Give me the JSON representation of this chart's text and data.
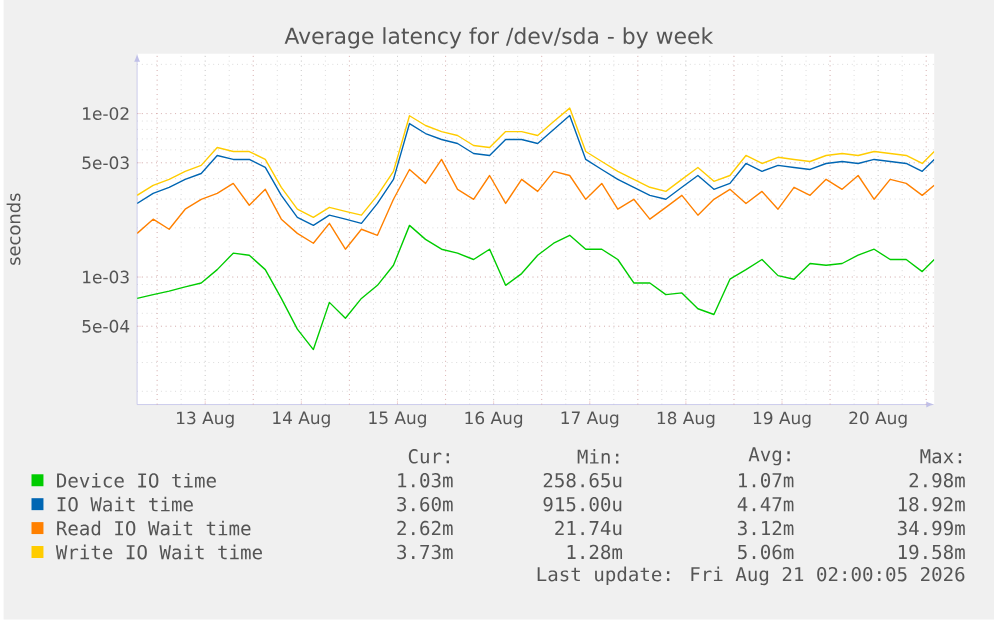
{
  "chart_data": {
    "type": "line",
    "title": "Average latency for /dev/sda - by week",
    "ylabel": "seconds",
    "log": "y",
    "grid": true,
    "legend": "bottom",
    "xlim": [
      "2026-08-12T19:00",
      "2026-08-21T02:00"
    ],
    "xticks": [
      {
        "value": "2026-08-13T12:00",
        "label": "13 Aug"
      },
      {
        "value": "2026-08-14T12:00",
        "label": "14 Aug"
      },
      {
        "value": "2026-08-15T12:00",
        "label": "15 Aug"
      },
      {
        "value": "2026-08-16T12:00",
        "label": "16 Aug"
      },
      {
        "value": "2026-08-17T12:00",
        "label": "17 Aug"
      },
      {
        "value": "2026-08-18T12:00",
        "label": "18 Aug"
      },
      {
        "value": "2026-08-19T12:00",
        "label": "19 Aug"
      },
      {
        "value": "2026-08-20T12:00",
        "label": "20 Aug"
      }
    ],
    "ylim": [
      0.000166,
      0.0232
    ],
    "yticks": [
      {
        "value": 0.0005,
        "label": "5e-04"
      },
      {
        "value": 0.001,
        "label": "1e-03"
      },
      {
        "value": 0.005,
        "label": "5e-03"
      },
      {
        "value": 0.01,
        "label": "1e-02"
      }
    ],
    "x": [
      "2026-08-12T19:00",
      "2026-08-12T23:00",
      "2026-08-13T03:00",
      "2026-08-13T07:00",
      "2026-08-13T11:00",
      "2026-08-13T15:00",
      "2026-08-13T19:00",
      "2026-08-13T23:00",
      "2026-08-14T03:00",
      "2026-08-14T07:00",
      "2026-08-14T11:00",
      "2026-08-14T15:00",
      "2026-08-14T19:00",
      "2026-08-14T23:00",
      "2026-08-15T03:00",
      "2026-08-15T07:00",
      "2026-08-15T11:00",
      "2026-08-15T15:00",
      "2026-08-15T19:00",
      "2026-08-15T23:00",
      "2026-08-16T03:00",
      "2026-08-16T07:00",
      "2026-08-16T11:00",
      "2026-08-16T15:00",
      "2026-08-16T19:00",
      "2026-08-16T23:00",
      "2026-08-17T03:00",
      "2026-08-17T07:00",
      "2026-08-17T11:00",
      "2026-08-17T15:00",
      "2026-08-17T19:00",
      "2026-08-17T23:00",
      "2026-08-18T03:00",
      "2026-08-18T07:00",
      "2026-08-18T11:00",
      "2026-08-18T15:00",
      "2026-08-18T19:00",
      "2026-08-18T23:00",
      "2026-08-19T03:00",
      "2026-08-19T07:00",
      "2026-08-19T11:00",
      "2026-08-19T15:00",
      "2026-08-19T19:00",
      "2026-08-19T23:00",
      "2026-08-20T03:00",
      "2026-08-20T07:00",
      "2026-08-20T11:00",
      "2026-08-20T15:00",
      "2026-08-20T19:00",
      "2026-08-20T23:00",
      "2026-08-21T02:00"
    ],
    "series": [
      {
        "name": "Device IO time",
        "color": "#00cc00",
        "values": [
          0.00074,
          0.00078,
          0.00082,
          0.00087,
          0.00092,
          0.00111,
          0.0014,
          0.00136,
          0.00111,
          0.00074,
          0.00048,
          0.00036,
          0.0007,
          0.00056,
          0.00074,
          0.00089,
          0.00118,
          0.00207,
          0.0017,
          0.00148,
          0.0014,
          0.00128,
          0.00148,
          0.00089,
          0.00105,
          0.00136,
          0.00161,
          0.0018,
          0.00148,
          0.00148,
          0.00128,
          0.00092,
          0.00092,
          0.00078,
          0.0008,
          0.00064,
          0.00059,
          0.00097,
          0.00111,
          0.00128,
          0.00102,
          0.00097,
          0.00121,
          0.00118,
          0.00121,
          0.00136,
          0.00148,
          0.00128,
          0.00128,
          0.00108,
          0.00128
        ]
      },
      {
        "name": "IO Wait time",
        "color": "#0066b3",
        "values": [
          0.00282,
          0.00325,
          0.00354,
          0.00396,
          0.0043,
          0.00554,
          0.00524,
          0.00524,
          0.00468,
          0.00316,
          0.00232,
          0.00207,
          0.00239,
          0.00226,
          0.00213,
          0.00282,
          0.00396,
          0.00869,
          0.00755,
          0.00694,
          0.00656,
          0.0057,
          0.00554,
          0.00694,
          0.00694,
          0.00656,
          0.00799,
          0.00972,
          0.00524,
          0.00455,
          0.00396,
          0.00354,
          0.00316,
          0.00299,
          0.00354,
          0.00418,
          0.00344,
          0.00374,
          0.00495,
          0.00443,
          0.00482,
          0.00468,
          0.00455,
          0.00495,
          0.00509,
          0.00495,
          0.00524,
          0.00509,
          0.00495,
          0.00443,
          0.00524
        ]
      },
      {
        "name": "Read IO Wait time",
        "color": "#ff8000",
        "values": [
          0.00185,
          0.00226,
          0.00196,
          0.0026,
          0.00299,
          0.00325,
          0.00374,
          0.00275,
          0.00344,
          0.00226,
          0.00185,
          0.00161,
          0.00213,
          0.00148,
          0.00196,
          0.0018,
          0.00299,
          0.00455,
          0.00374,
          0.00524,
          0.00344,
          0.00299,
          0.00418,
          0.00282,
          0.00396,
          0.00334,
          0.00443,
          0.00418,
          0.00299,
          0.00374,
          0.0026,
          0.00299,
          0.00226,
          0.00267,
          0.00316,
          0.00239,
          0.00299,
          0.00344,
          0.00282,
          0.00334,
          0.0026,
          0.00354,
          0.00316,
          0.00396,
          0.00344,
          0.00418,
          0.00299,
          0.00396,
          0.00374,
          0.00316,
          0.00364
        ]
      },
      {
        "name": "Write IO Wait time",
        "color": "#ffcc00",
        "values": [
          0.00316,
          0.00364,
          0.00396,
          0.00443,
          0.00482,
          0.0062,
          0.00586,
          0.00586,
          0.00524,
          0.00354,
          0.0026,
          0.00232,
          0.00267,
          0.00252,
          0.00239,
          0.00316,
          0.00443,
          0.0097,
          0.00845,
          0.00776,
          0.00734,
          0.00638,
          0.0062,
          0.00776,
          0.00776,
          0.00734,
          0.00894,
          0.0108,
          0.00586,
          0.00509,
          0.00443,
          0.00396,
          0.00354,
          0.00334,
          0.00396,
          0.00468,
          0.00385,
          0.00418,
          0.00554,
          0.00495,
          0.0054,
          0.00524,
          0.00509,
          0.00554,
          0.0057,
          0.00554,
          0.00586,
          0.0057,
          0.00554,
          0.00495,
          0.00586
        ]
      }
    ],
    "annotations": [
      "Cur:",
      "Min:",
      "Avg:",
      "Max:",
      "1.03m",
      "258.65u",
      "1.07m",
      "2.98m",
      "3.60m",
      "915.00u",
      "4.47m",
      "18.92m",
      "2.62m",
      "21.74u",
      "3.12m",
      "34.99m",
      "3.73m",
      "1.28m",
      "5.06m",
      "19.58m",
      "Last update: Fri Aug 21 02:00:05 2026"
    ]
  }
}
